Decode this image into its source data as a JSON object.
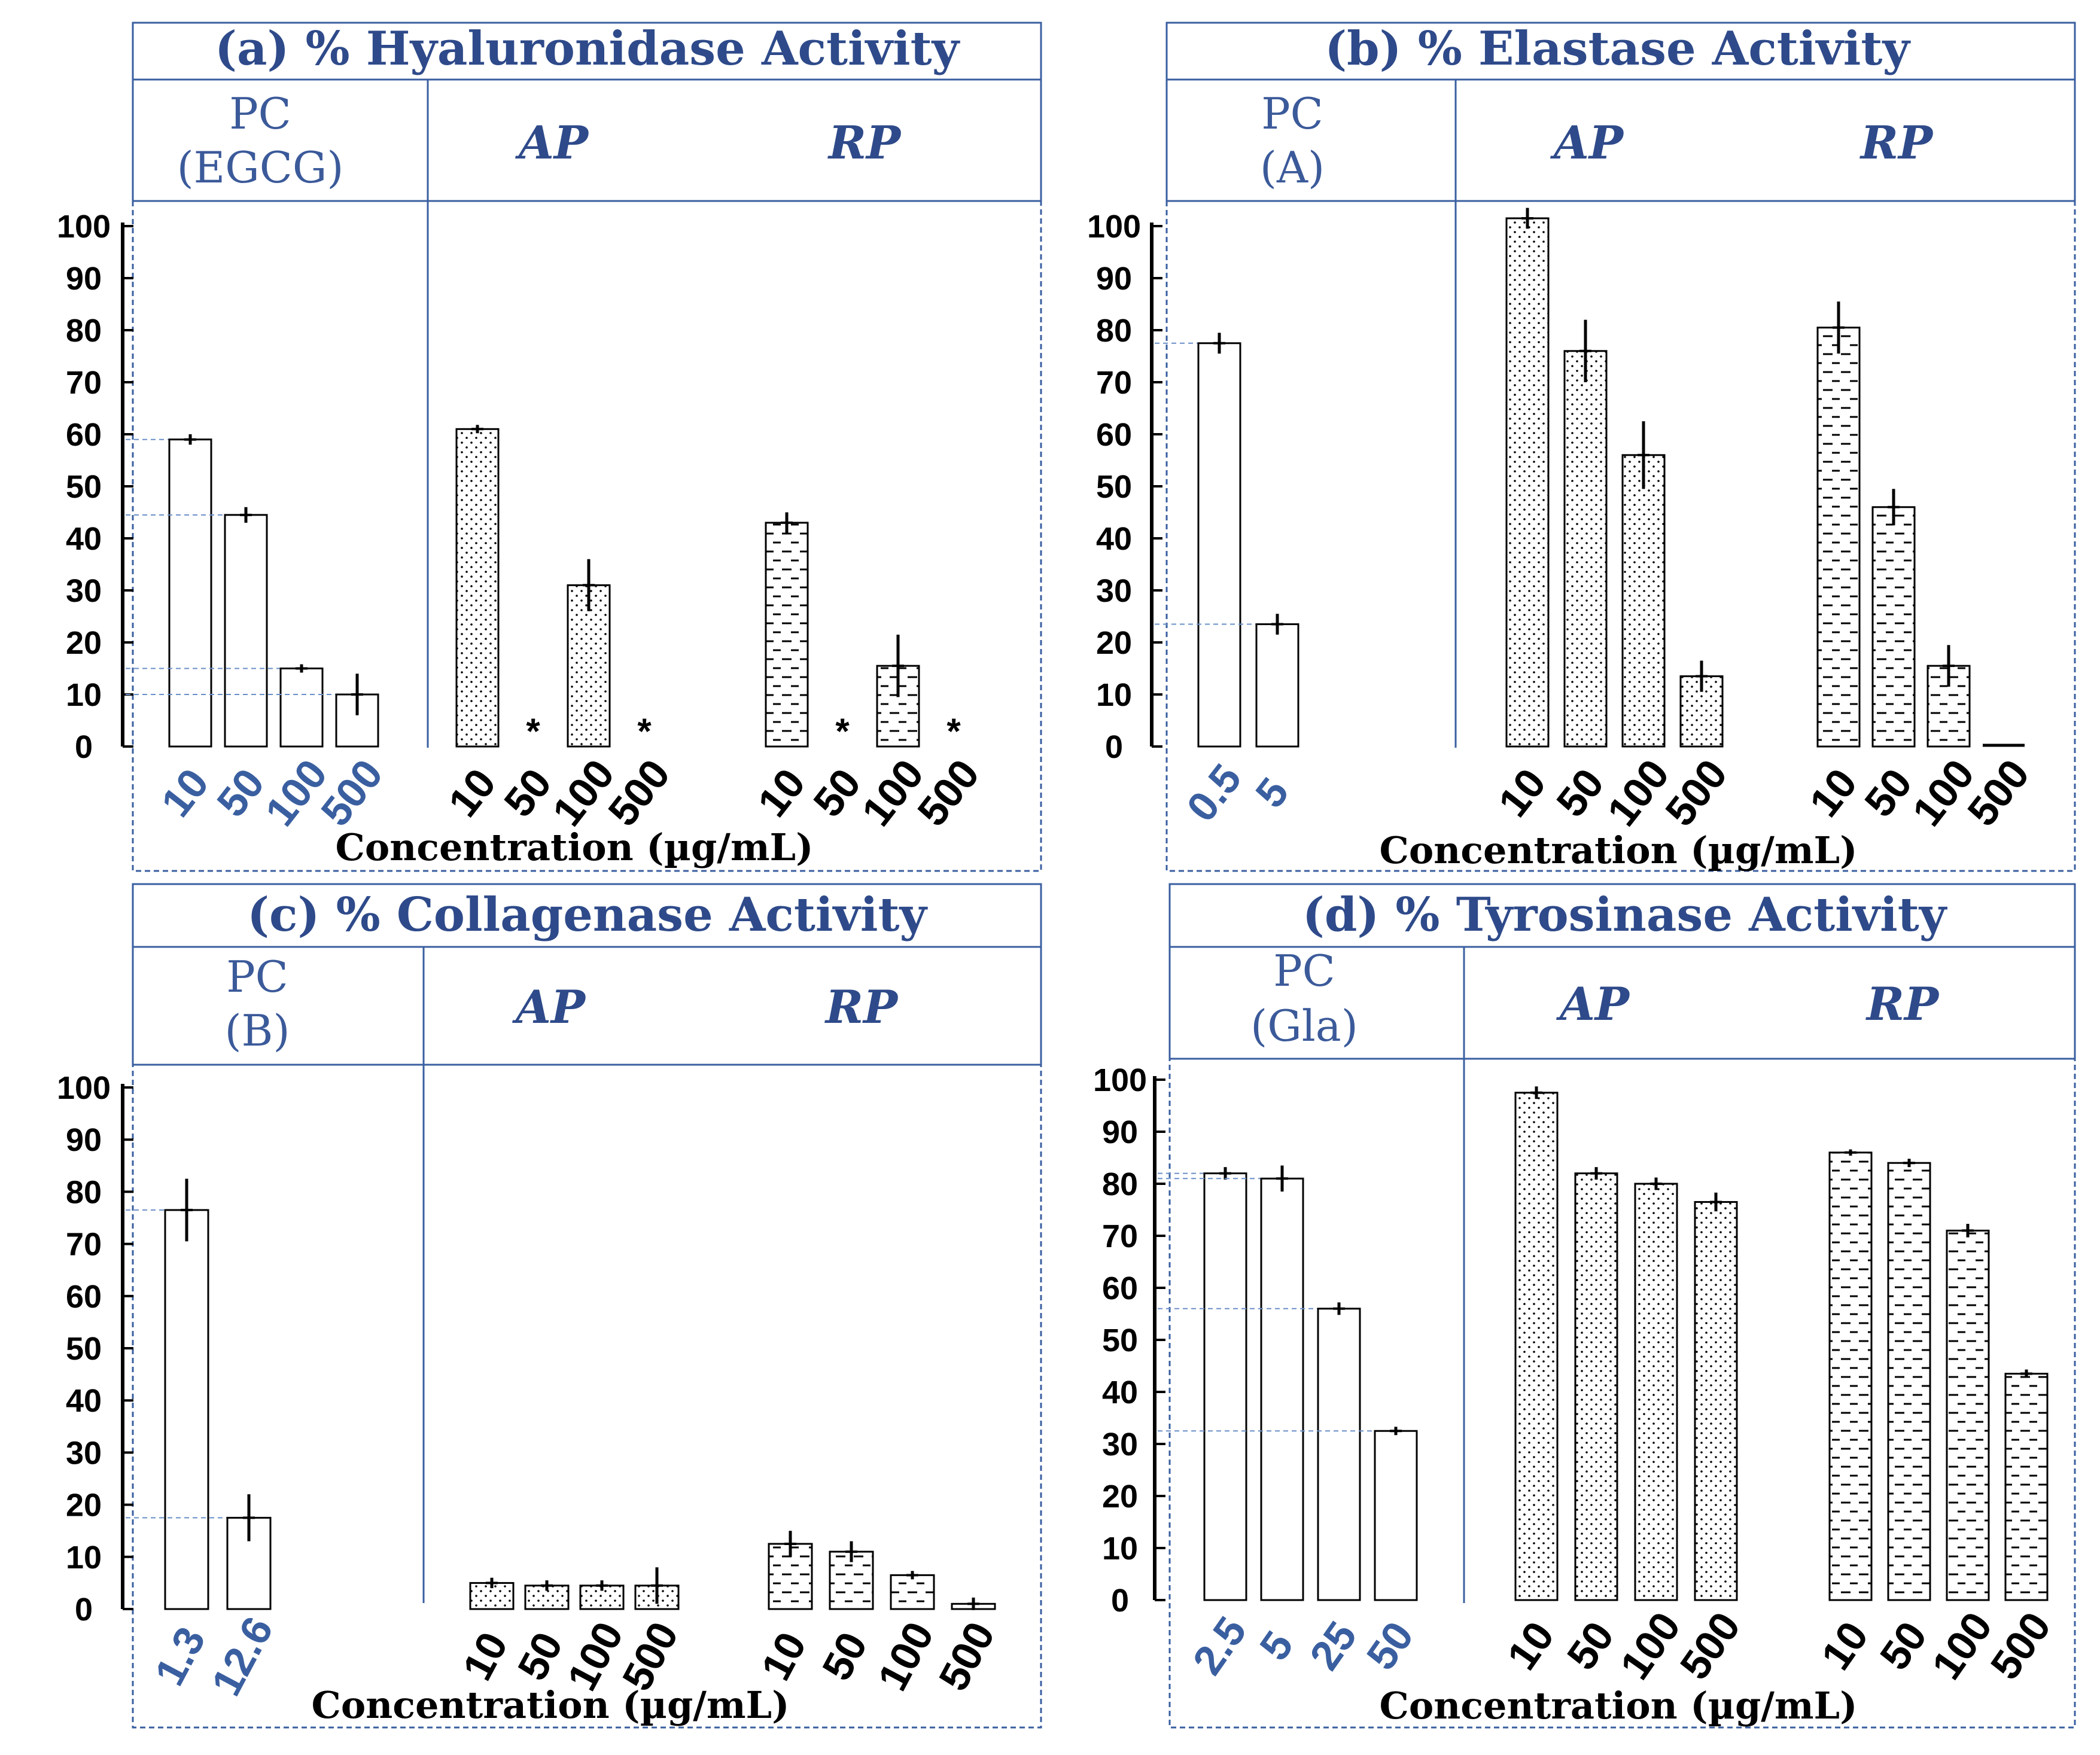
{
  "chart_data": [
    {
      "type": "bar",
      "title": "(a) % Hyaluronidase Activity",
      "ylabel": "",
      "xlabel": "Concentration (µg/mL)",
      "ylim": [
        0,
        100
      ],
      "yticks": [
        0,
        10,
        20,
        30,
        40,
        50,
        60,
        70,
        80,
        90,
        100
      ],
      "groups": [
        {
          "name": "PC",
          "sub": "(EGCG)",
          "pattern": "none",
          "categories": [
            "10",
            "50",
            "100",
            "500"
          ],
          "values": [
            59,
            44.5,
            15,
            10
          ],
          "errors": [
            1,
            1.5,
            0.8,
            4
          ],
          "stars": [
            false,
            false,
            false,
            false
          ]
        },
        {
          "name": "AP",
          "pattern": "dots",
          "categories": [
            "10",
            "50",
            "100",
            "500"
          ],
          "values": [
            61,
            0,
            31,
            0
          ],
          "errors": [
            0.8,
            0,
            5,
            0
          ],
          "stars": [
            false,
            true,
            false,
            true
          ]
        },
        {
          "name": "RP",
          "pattern": "dashes",
          "categories": [
            "10",
            "50",
            "100",
            "500"
          ],
          "values": [
            43,
            0,
            15.5,
            0
          ],
          "errors": [
            2,
            0,
            6,
            0
          ],
          "stars": [
            false,
            true,
            false,
            true
          ]
        }
      ]
    },
    {
      "type": "bar",
      "title": "(b) % Elastase Activity",
      "ylabel": "",
      "xlabel": "Concentration (µg/mL)",
      "ylim": [
        0,
        100
      ],
      "yticks": [
        0,
        10,
        20,
        30,
        40,
        50,
        60,
        70,
        80,
        90,
        100
      ],
      "groups": [
        {
          "name": "PC",
          "sub": "(A)",
          "pattern": "none",
          "categories": [
            "0.5",
            "5"
          ],
          "values": [
            77.5,
            23.5
          ],
          "errors": [
            2,
            2
          ],
          "stars": [
            false,
            false
          ]
        },
        {
          "name": "AP",
          "pattern": "dots",
          "categories": [
            "10",
            "50",
            "100",
            "500"
          ],
          "values": [
            101.5,
            76,
            56,
            13.5
          ],
          "errors": [
            2,
            6,
            6.5,
            3
          ],
          "stars": [
            false,
            false,
            false,
            false
          ]
        },
        {
          "name": "RP",
          "pattern": "dashes",
          "categories": [
            "10",
            "50",
            "100",
            "500"
          ],
          "values": [
            80.5,
            46,
            15.5,
            0.5
          ],
          "errors": [
            5,
            3.5,
            4,
            0
          ],
          "stars": [
            false,
            false,
            false,
            false
          ]
        }
      ]
    },
    {
      "type": "bar",
      "title": "(c) % Collagenase Activity",
      "ylabel": "",
      "xlabel": "Concentration (µg/mL)",
      "ylim": [
        0,
        100
      ],
      "yticks": [
        0,
        10,
        20,
        30,
        40,
        50,
        60,
        70,
        80,
        90,
        100
      ],
      "groups": [
        {
          "name": "PC",
          "sub": "(B)",
          "pattern": "none",
          "categories": [
            "1.3",
            "12.6"
          ],
          "values": [
            76.5,
            17.5
          ],
          "errors": [
            6,
            4.5
          ],
          "stars": [
            false,
            false
          ]
        },
        {
          "name": "AP",
          "pattern": "dots",
          "categories": [
            "10",
            "50",
            "100",
            "500"
          ],
          "values": [
            5,
            4.5,
            4.5,
            4.5
          ],
          "errors": [
            1,
            1,
            1,
            3.5
          ],
          "stars": [
            false,
            false,
            false,
            false
          ]
        },
        {
          "name": "RP",
          "pattern": "dashes",
          "categories": [
            "10",
            "50",
            "100",
            "500"
          ],
          "values": [
            12.5,
            11,
            6.5,
            1
          ],
          "errors": [
            2.5,
            2,
            0.8,
            1.2
          ],
          "stars": [
            false,
            false,
            false,
            false
          ]
        }
      ]
    },
    {
      "type": "bar",
      "title": "(d) % Tyrosinase Activity",
      "ylabel": "",
      "xlabel": "Concentration (µg/mL)",
      "ylim": [
        0,
        100
      ],
      "yticks": [
        0,
        10,
        20,
        30,
        40,
        50,
        60,
        70,
        80,
        90,
        100
      ],
      "groups": [
        {
          "name": "PC",
          "sub": "(Gla)",
          "pattern": "none",
          "categories": [
            "2.5",
            "5",
            "25",
            "50"
          ],
          "values": [
            82,
            81,
            56,
            32.5
          ],
          "errors": [
            1.2,
            2.5,
            1.2,
            0.8
          ],
          "stars": [
            false,
            false,
            false,
            false
          ]
        },
        {
          "name": "AP",
          "pattern": "dots",
          "categories": [
            "10",
            "50",
            "100",
            "500"
          ],
          "values": [
            97.5,
            82,
            80,
            76.5
          ],
          "errors": [
            1.2,
            1.2,
            1.2,
            1.8
          ],
          "stars": [
            false,
            false,
            false,
            false
          ]
        },
        {
          "name": "RP",
          "pattern": "dashes",
          "categories": [
            "10",
            "50",
            "100",
            "500"
          ],
          "values": [
            86,
            84,
            71,
            43.5
          ],
          "errors": [
            0.6,
            0.8,
            1.3,
            0.8
          ],
          "stars": [
            false,
            false,
            false,
            false
          ]
        }
      ]
    }
  ],
  "colors": {
    "box_border": "#3a5fa0",
    "title_text": "#2e4a8a",
    "pc_tick_text": "#3a5fa0",
    "reference_line": "#6a8fc8",
    "bar_stroke": "#000000"
  }
}
